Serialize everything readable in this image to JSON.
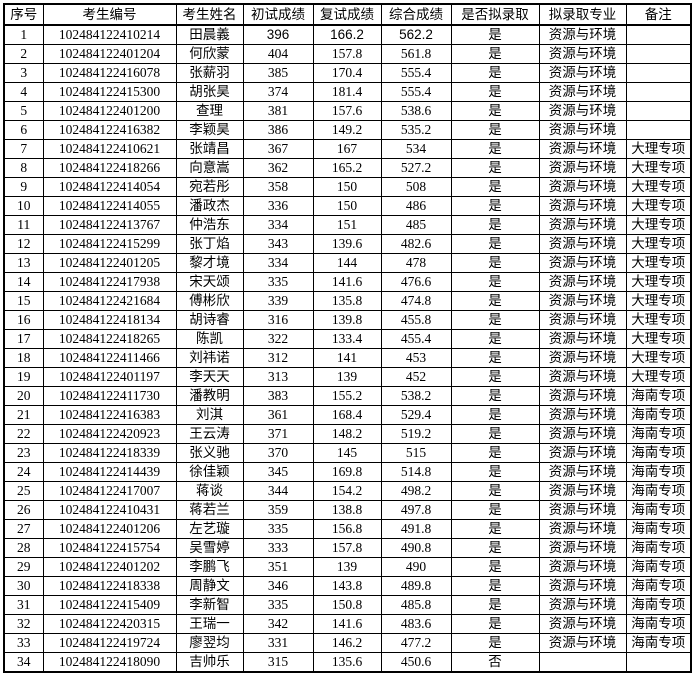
{
  "colors": {
    "border": "#000000",
    "text": "#000000",
    "background": "#ffffff"
  },
  "table": {
    "headers": [
      "序号",
      "考生编号",
      "考生姓名",
      "初试成绩",
      "复试成绩",
      "综合成绩",
      "是否拟录取",
      "拟录取专业",
      "备注"
    ],
    "column_keys": [
      "no",
      "candidate-id",
      "candidate-name",
      "initial-score",
      "retest-score",
      "composite-score",
      "admitted",
      "major",
      "note"
    ],
    "bold_cells": [
      [
        0,
        3
      ],
      [
        0,
        4
      ],
      [
        0,
        5
      ]
    ],
    "rows": [
      [
        "1",
        "102484122410214",
        "田晨義",
        "396",
        "166.2",
        "562.2",
        "是",
        "资源与环境",
        ""
      ],
      [
        "2",
        "102484122401204",
        "何欣蒙",
        "404",
        "157.8",
        "561.8",
        "是",
        "资源与环境",
        ""
      ],
      [
        "3",
        "102484122416078",
        "张薪羽",
        "385",
        "170.4",
        "555.4",
        "是",
        "资源与环境",
        ""
      ],
      [
        "4",
        "102484122415300",
        "胡张昊",
        "374",
        "181.4",
        "555.4",
        "是",
        "资源与环境",
        ""
      ],
      [
        "5",
        "102484122401200",
        "查理",
        "381",
        "157.6",
        "538.6",
        "是",
        "资源与环境",
        ""
      ],
      [
        "6",
        "102484122416382",
        "李颖昊",
        "386",
        "149.2",
        "535.2",
        "是",
        "资源与环境",
        ""
      ],
      [
        "7",
        "102484122410621",
        "张靖昌",
        "367",
        "167",
        "534",
        "是",
        "资源与环境",
        "大理专项"
      ],
      [
        "8",
        "102484122418266",
        "向意嵩",
        "362",
        "165.2",
        "527.2",
        "是",
        "资源与环境",
        "大理专项"
      ],
      [
        "9",
        "102484122414054",
        "宛若彤",
        "358",
        "150",
        "508",
        "是",
        "资源与环境",
        "大理专项"
      ],
      [
        "10",
        "102484122414055",
        "潘政杰",
        "336",
        "150",
        "486",
        "是",
        "资源与环境",
        "大理专项"
      ],
      [
        "11",
        "102484122413767",
        "仲浩东",
        "334",
        "151",
        "485",
        "是",
        "资源与环境",
        "大理专项"
      ],
      [
        "12",
        "102484122415299",
        "张丁焰",
        "343",
        "139.6",
        "482.6",
        "是",
        "资源与环境",
        "大理专项"
      ],
      [
        "13",
        "102484122401205",
        "黎才境",
        "334",
        "144",
        "478",
        "是",
        "资源与环境",
        "大理专项"
      ],
      [
        "14",
        "102484122417938",
        "宋天颂",
        "335",
        "141.6",
        "476.6",
        "是",
        "资源与环境",
        "大理专项"
      ],
      [
        "15",
        "102484122421684",
        "傅彬欣",
        "339",
        "135.8",
        "474.8",
        "是",
        "资源与环境",
        "大理专项"
      ],
      [
        "16",
        "102484122418134",
        "胡诗睿",
        "316",
        "139.8",
        "455.8",
        "是",
        "资源与环境",
        "大理专项"
      ],
      [
        "17",
        "102484122418265",
        "陈凯",
        "322",
        "133.4",
        "455.4",
        "是",
        "资源与环境",
        "大理专项"
      ],
      [
        "18",
        "102484122411466",
        "刘祎诺",
        "312",
        "141",
        "453",
        "是",
        "资源与环境",
        "大理专项"
      ],
      [
        "19",
        "102484122401197",
        "李天天",
        "313",
        "139",
        "452",
        "是",
        "资源与环境",
        "大理专项"
      ],
      [
        "20",
        "102484122411730",
        "潘教明",
        "383",
        "155.2",
        "538.2",
        "是",
        "资源与环境",
        "海南专项"
      ],
      [
        "21",
        "102484122416383",
        "刘淇",
        "361",
        "168.4",
        "529.4",
        "是",
        "资源与环境",
        "海南专项"
      ],
      [
        "22",
        "102484122420923",
        "王云涛",
        "371",
        "148.2",
        "519.2",
        "是",
        "资源与环境",
        "海南专项"
      ],
      [
        "23",
        "102484122418339",
        "张义驰",
        "370",
        "145",
        "515",
        "是",
        "资源与环境",
        "海南专项"
      ],
      [
        "24",
        "102484122414439",
        "徐佳颖",
        "345",
        "169.8",
        "514.8",
        "是",
        "资源与环境",
        "海南专项"
      ],
      [
        "25",
        "102484122417007",
        "蒋谈",
        "344",
        "154.2",
        "498.2",
        "是",
        "资源与环境",
        "海南专项"
      ],
      [
        "26",
        "102484122410431",
        "蒋若兰",
        "359",
        "138.8",
        "497.8",
        "是",
        "资源与环境",
        "海南专项"
      ],
      [
        "27",
        "102484122401206",
        "左艺璇",
        "335",
        "156.8",
        "491.8",
        "是",
        "资源与环境",
        "海南专项"
      ],
      [
        "28",
        "102484122415754",
        "吴雪婷",
        "333",
        "157.8",
        "490.8",
        "是",
        "资源与环境",
        "海南专项"
      ],
      [
        "29",
        "102484122401202",
        "李鹏飞",
        "351",
        "139",
        "490",
        "是",
        "资源与环境",
        "海南专项"
      ],
      [
        "30",
        "102484122418338",
        "周静文",
        "346",
        "143.8",
        "489.8",
        "是",
        "资源与环境",
        "海南专项"
      ],
      [
        "31",
        "102484122415409",
        "李新智",
        "335",
        "150.8",
        "485.8",
        "是",
        "资源与环境",
        "海南专项"
      ],
      [
        "32",
        "102484122420315",
        "王瑞一",
        "342",
        "141.6",
        "483.6",
        "是",
        "资源与环境",
        "海南专项"
      ],
      [
        "33",
        "102484122419724",
        "廖翌均",
        "331",
        "146.2",
        "477.2",
        "是",
        "资源与环境",
        "海南专项"
      ],
      [
        "34",
        "102484122418090",
        "吉帅乐",
        "315",
        "135.6",
        "450.6",
        "否",
        "",
        ""
      ]
    ]
  }
}
